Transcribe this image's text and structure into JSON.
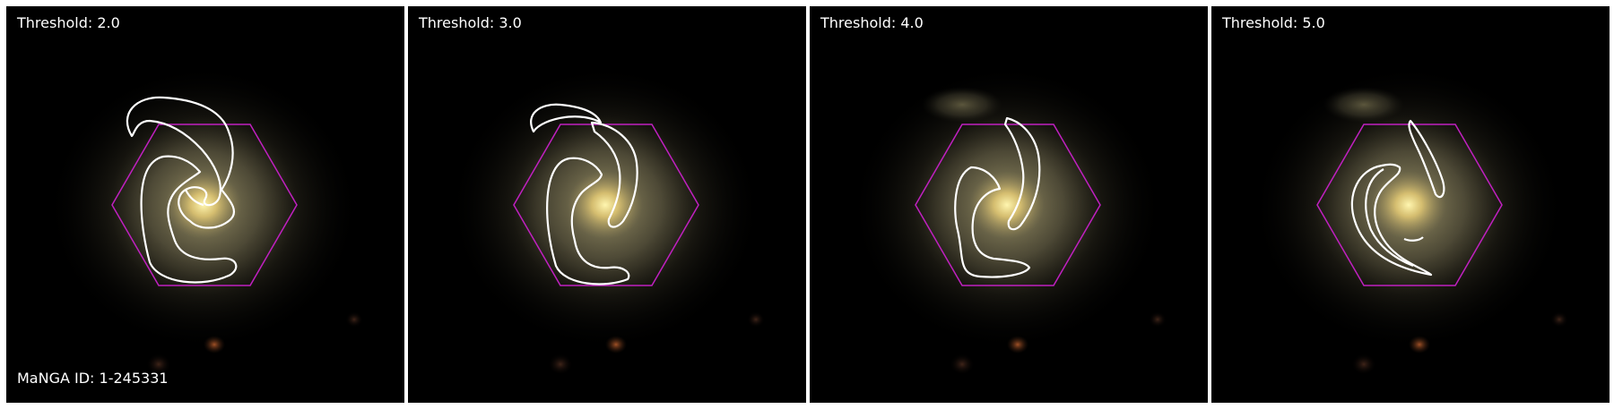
{
  "figure": {
    "panels": [
      {
        "threshold_label": "Threshold: 2.0"
      },
      {
        "threshold_label": "Threshold: 3.0"
      },
      {
        "threshold_label": "Threshold: 4.0"
      },
      {
        "threshold_label": "Threshold: 5.0"
      }
    ],
    "galaxy_id_label": "MaNGA ID: 1-245331"
  },
  "colors": {
    "contour": "#ffffff",
    "hexagon": "#c020c0",
    "background": "#000000",
    "galaxy_core": "#f2e08a"
  }
}
